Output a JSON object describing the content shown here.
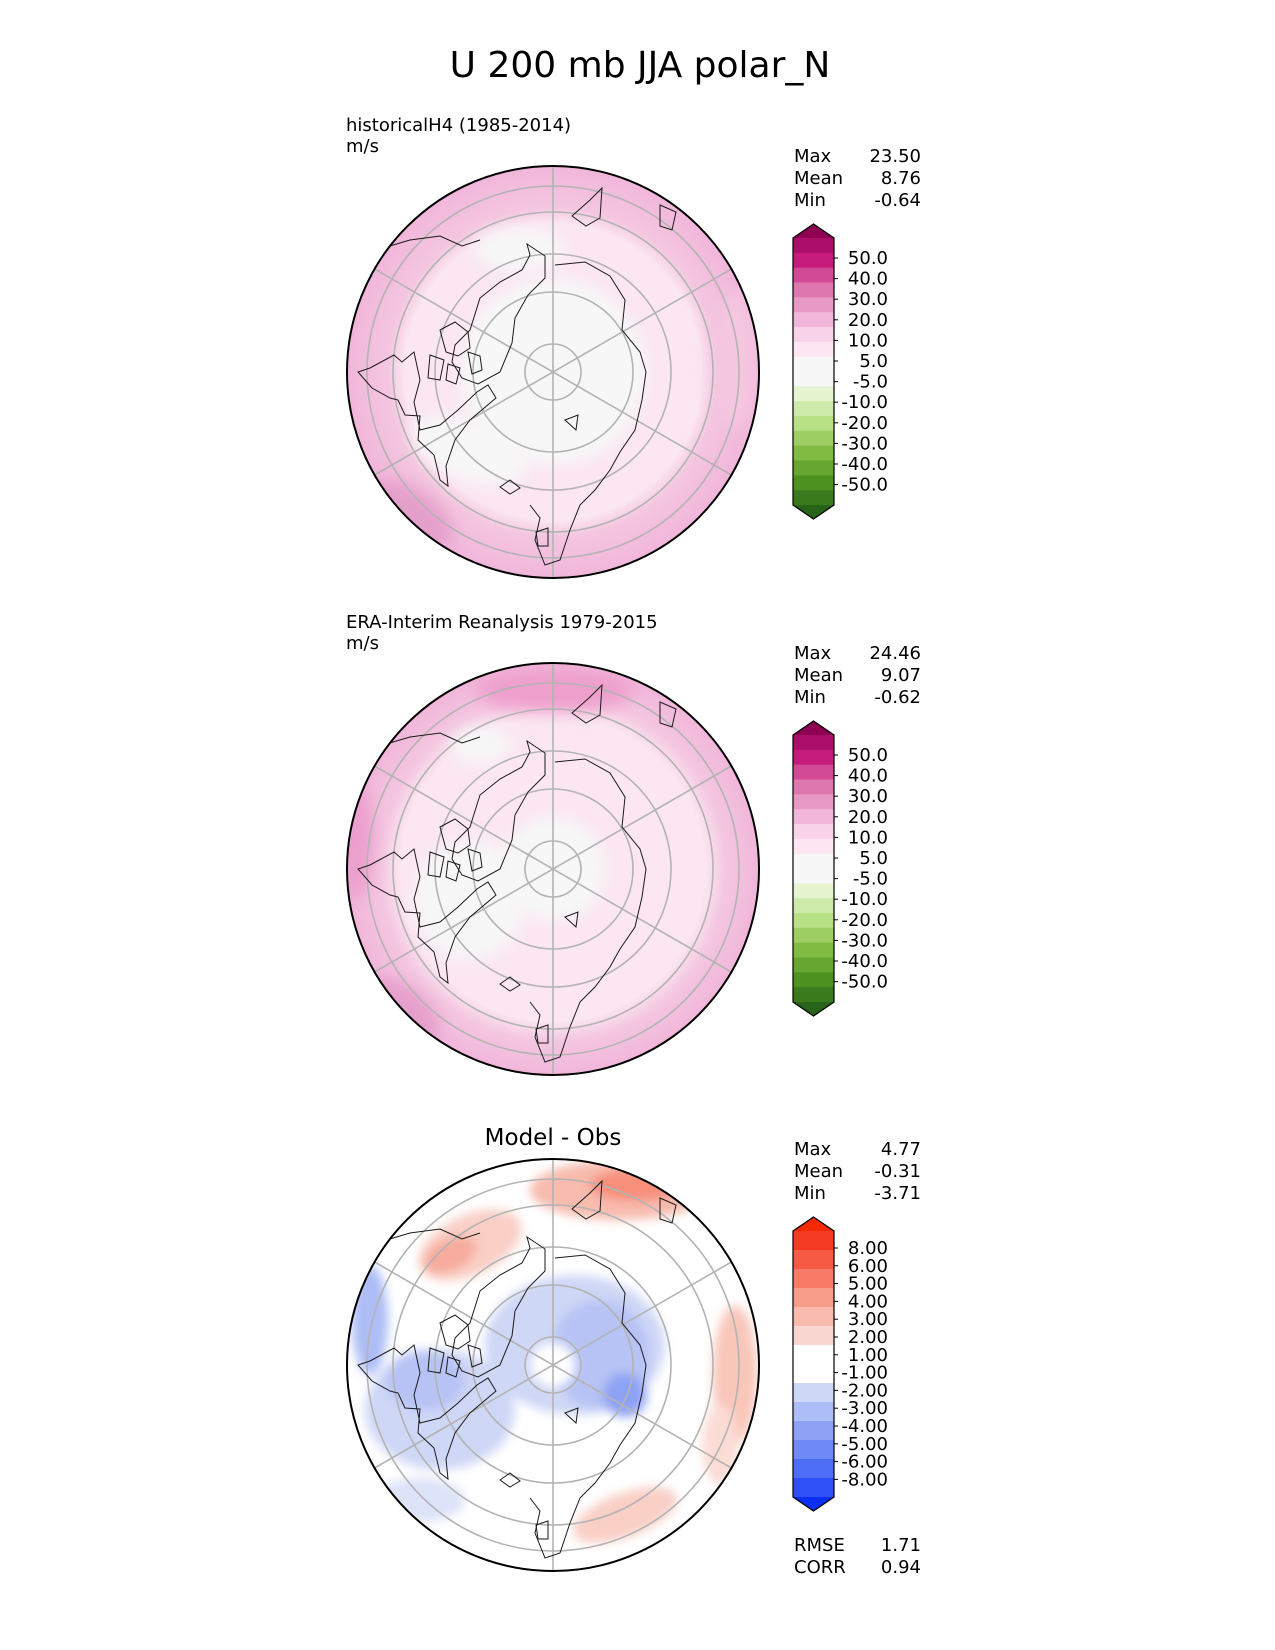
{
  "figure": {
    "title": "U 200 mb JJA polar_N"
  },
  "panels": [
    {
      "id": "test",
      "title_left": "historicalH4 (1985-2014)",
      "units": "m/s",
      "title_center": "",
      "stats": [
        {
          "label": "Max",
          "value": "23.50"
        },
        {
          "label": "Mean",
          "value": "8.76"
        },
        {
          "label": "Min",
          "value": "-0.64"
        }
      ],
      "colorbar": {
        "palette": "pink-green",
        "colors": [
          "#276419",
          "#4d9221",
          "#7fbc41",
          "#b8e186",
          "#e6f5d0",
          "#f7f7f7",
          "#fde0ef",
          "#f1b6da",
          "#de77ae",
          "#c51b7d",
          "#8e0152"
        ],
        "segment_colors": [
          "#276419",
          "#3a7a1d",
          "#4d9221",
          "#66a731",
          "#7fbc41",
          "#9cce64",
          "#b8e186",
          "#cfebab",
          "#e6f5d0",
          "#f7f7f7",
          "#f7f7f7",
          "#fbe6f1",
          "#f9d3e8",
          "#f1b6da",
          "#e798c4",
          "#de77ae",
          "#d24a96",
          "#c51b7d",
          "#a90e68",
          "#8e0152"
        ],
        "tick_labels": [
          "50.0",
          "40.0",
          "30.0",
          "20.0",
          "10.0",
          "5.0",
          "-5.0",
          "-10.0",
          "-20.0",
          "-30.0",
          "-40.0",
          "-50.0"
        ]
      },
      "extra_stats": []
    },
    {
      "id": "reference",
      "title_left": "ERA-Interim Reanalysis 1979-2015",
      "units": "m/s",
      "title_center": "",
      "stats": [
        {
          "label": "Max",
          "value": "24.46"
        },
        {
          "label": "Mean",
          "value": "9.07"
        },
        {
          "label": "Min",
          "value": "-0.62"
        }
      ],
      "colorbar": {
        "palette": "pink-green",
        "segment_colors": [
          "#276419",
          "#3a7a1d",
          "#4d9221",
          "#66a731",
          "#7fbc41",
          "#9cce64",
          "#b8e186",
          "#cfebab",
          "#e6f5d0",
          "#f7f7f7",
          "#f7f7f7",
          "#fbe6f1",
          "#f9d3e8",
          "#f1b6da",
          "#e798c4",
          "#de77ae",
          "#d24a96",
          "#c51b7d",
          "#a90e68",
          "#8e0152"
        ],
        "tick_labels": [
          "50.0",
          "40.0",
          "30.0",
          "20.0",
          "10.0",
          "5.0",
          "-5.0",
          "-10.0",
          "-20.0",
          "-30.0",
          "-40.0",
          "-50.0"
        ]
      },
      "extra_stats": []
    },
    {
      "id": "difference",
      "title_left": "",
      "units": "",
      "title_center": "Model - Obs",
      "stats": [
        {
          "label": "Max",
          "value": "4.77"
        },
        {
          "label": "Mean",
          "value": "-0.31"
        },
        {
          "label": "Min",
          "value": "-3.71"
        }
      ],
      "colorbar": {
        "palette": "blue-red",
        "segment_colors": [
          "#0c2ff5",
          "#2f50f7",
          "#4f6ef8",
          "#6f89f7",
          "#8ea2f5",
          "#adbdf5",
          "#cfd7f6",
          "#ffffff",
          "#ffffff",
          "#f9d7d0",
          "#f8bbae",
          "#f89c8a",
          "#f77b66",
          "#f65a44",
          "#f43b22",
          "#f42a07"
        ],
        "tick_labels": [
          "8.00",
          "6.00",
          "5.00",
          "4.00",
          "3.00",
          "2.00",
          "1.00",
          "-1.00",
          "-2.00",
          "-3.00",
          "-4.00",
          "-5.00",
          "-6.00",
          "-8.00"
        ]
      },
      "extra_stats": [
        {
          "label": "RMSE",
          "value": "1.71"
        },
        {
          "label": "CORR",
          "value": "0.94"
        }
      ]
    }
  ],
  "chart_data": [
    {
      "type": "heatmap",
      "projection": "north polar stereographic",
      "variable": "U 200 mb JJA",
      "title": "historicalH4 (1985-2014)",
      "units": "m/s",
      "stats": {
        "max": 23.5,
        "mean": 8.76,
        "min": -0.64
      },
      "contour_levels": [
        -50,
        -40,
        -30,
        -20,
        -10,
        -5,
        5,
        10,
        20,
        30,
        40,
        50
      ],
      "approx_zonal_mean_by_ring": [
        {
          "ring": "pole",
          "value_range": "-5 to 5"
        },
        {
          "ring": "inner",
          "value_range": "-5 to 5"
        },
        {
          "ring": "middle",
          "value_range": "5 to 10"
        },
        {
          "ring": "outer",
          "value_range": "10 to 20"
        },
        {
          "ring": "edge",
          "value_range": "20 to 30"
        }
      ]
    },
    {
      "type": "heatmap",
      "projection": "north polar stereographic",
      "variable": "U 200 mb JJA",
      "title": "ERA-Interim Reanalysis 1979-2015",
      "units": "m/s",
      "stats": {
        "max": 24.46,
        "mean": 9.07,
        "min": -0.62
      },
      "contour_levels": [
        -50,
        -40,
        -30,
        -20,
        -10,
        -5,
        5,
        10,
        20,
        30,
        40,
        50
      ],
      "approx_zonal_mean_by_ring": [
        {
          "ring": "pole",
          "value_range": "-5 to 5"
        },
        {
          "ring": "inner",
          "value_range": "5 to 10"
        },
        {
          "ring": "middle",
          "value_range": "5 to 10"
        },
        {
          "ring": "outer",
          "value_range": "10 to 20"
        },
        {
          "ring": "edge",
          "value_range": "20 to 30"
        }
      ]
    },
    {
      "type": "heatmap",
      "projection": "north polar stereographic",
      "variable": "U 200 mb JJA",
      "title": "Model - Obs",
      "stats": {
        "max": 4.77,
        "mean": -0.31,
        "min": -3.71,
        "rmse": 1.71,
        "corr": 0.94
      },
      "contour_levels": [
        -8,
        -6,
        -5,
        -4,
        -3,
        -2,
        -1,
        1,
        2,
        3,
        4,
        5,
        6,
        8
      ]
    }
  ]
}
